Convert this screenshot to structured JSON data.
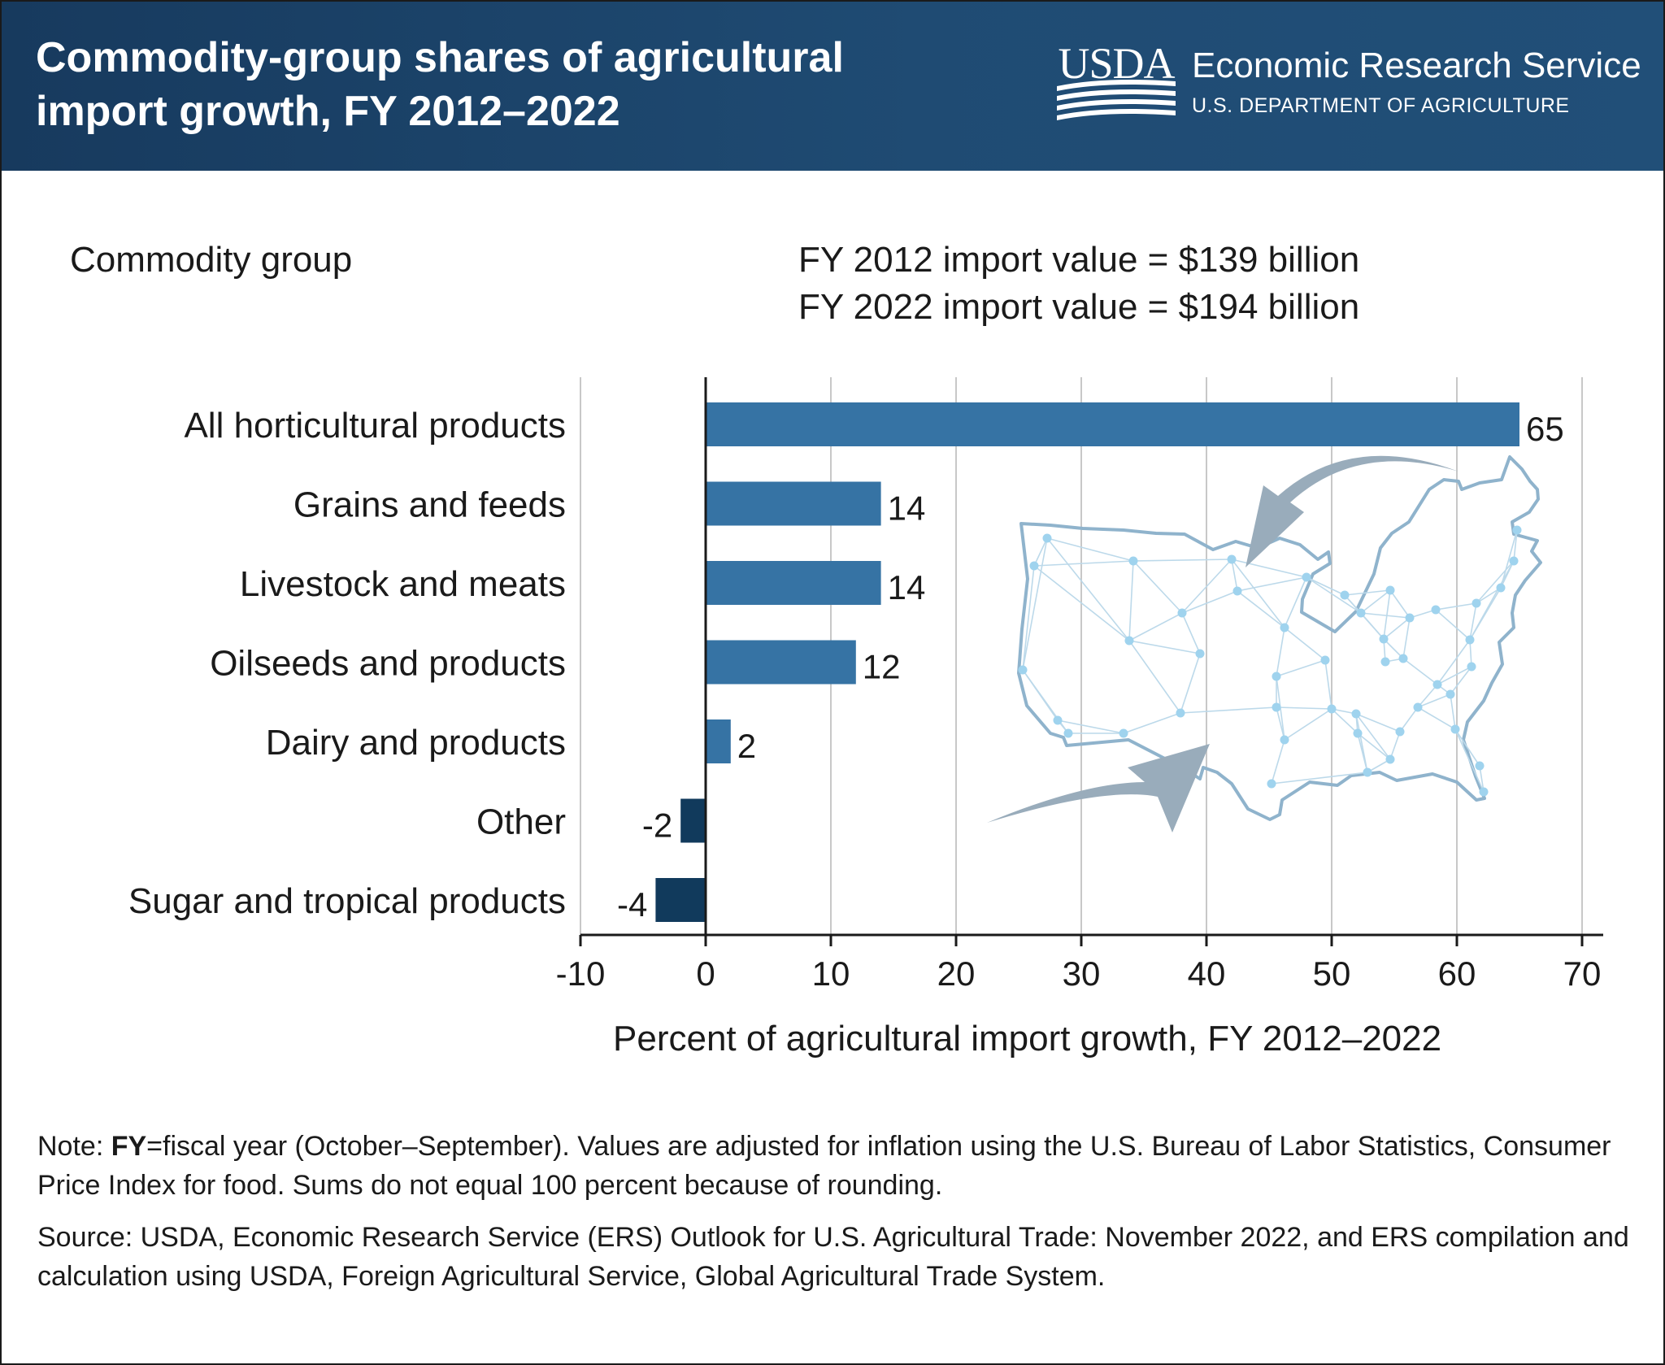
{
  "header": {
    "title": "Commodity-group shares of agricultural import growth, FY 2012–2022",
    "logo_text": "USDA",
    "agency": "Economic Research Service",
    "department": "U.S. DEPARTMENT OF AGRICULTURE",
    "background_color": "#1f4b73"
  },
  "chart_data": {
    "type": "bar",
    "orientation": "horizontal",
    "categories": [
      "All horticultural products",
      "Grains and feeds",
      "Livestock and meats",
      "Oilseeds and products",
      "Dairy and products",
      "Other",
      "Sugar and tropical products"
    ],
    "values": [
      65,
      14,
      14,
      12,
      2,
      -2,
      -4
    ],
    "value_labels": [
      "65",
      "14",
      "14",
      "12",
      "2",
      "-2",
      "-4"
    ],
    "xlabel": "Percent of agricultural import growth, FY 2012–2022",
    "ylabel": "Commodity group",
    "xlim": [
      -10,
      70
    ],
    "xticks": [
      -10,
      0,
      10,
      20,
      30,
      40,
      50,
      60,
      70
    ],
    "xtick_labels": [
      "-10",
      "0",
      "10",
      "20",
      "30",
      "40",
      "50",
      "60",
      "70"
    ],
    "grid": "vertical",
    "annotations": [
      "FY 2012 import value = $139 billion",
      "FY 2022 import value = $194 billion"
    ],
    "colors": {
      "positive": "#3673a4",
      "negative": "#113a5c",
      "grid": "#c8c8c8",
      "axis": "#1a1a1a"
    },
    "decoration": "network map of the contiguous United States with inward arrows"
  },
  "footer": {
    "note_prefix": "Note: ",
    "note_bold": "FY",
    "note_text": "=fiscal year (October–September). Values are adjusted for inflation using the U.S. Bureau of Labor Statistics, Consumer Price Index for food. Sums do not equal 100 percent because of rounding.",
    "source": "Source: USDA, Economic Research Service (ERS) Outlook for U.S. Agricultural Trade: November 2022, and ERS compilation and calculation using USDA, Foreign Agricultural Service, Global Agricultural Trade System."
  }
}
